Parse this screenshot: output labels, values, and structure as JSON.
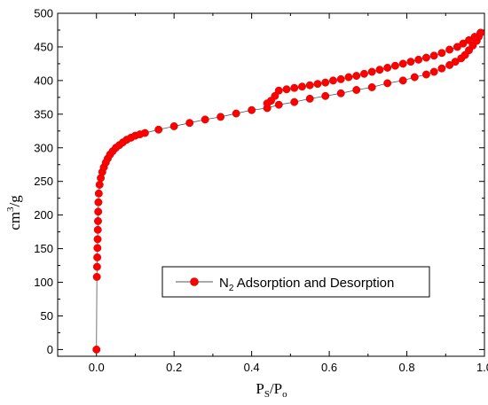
{
  "chart_data": {
    "type": "scatter",
    "ylabel": {
      "base": "cm",
      "sup": "3",
      "rest": "/g"
    },
    "xlabel": {
      "p": "P",
      "sub_s": "S",
      "slash": "/P",
      "sub_o": "o"
    },
    "xlim": [
      -0.1,
      1.0
    ],
    "ylim": [
      -10,
      500
    ],
    "xticks": [
      0.0,
      0.2,
      0.4,
      0.6,
      0.8,
      1.0
    ],
    "xtick_labels": [
      "0.0",
      "0.2",
      "0.4",
      "0.6",
      "0.8",
      "1.0"
    ],
    "yticks": [
      0,
      50,
      100,
      150,
      200,
      250,
      300,
      350,
      400,
      450,
      500
    ],
    "ytick_labels": [
      "0",
      "50",
      "100",
      "150",
      "200",
      "250",
      "300",
      "350",
      "400",
      "450",
      "500"
    ],
    "grid": false,
    "legend_position": "lower-right",
    "legend": {
      "label_n": "N",
      "label_sub": "2",
      "label_rest": " Adsorption and Desorption"
    },
    "colors": {
      "series": "#ff0000",
      "marker_edge": "#cc0000",
      "line": "#555555"
    },
    "series": [
      {
        "points": [
          [
            0.0,
            0
          ],
          [
            0.001,
            108
          ],
          [
            0.0015,
            123
          ],
          [
            0.002,
            137
          ],
          [
            0.0025,
            151
          ],
          [
            0.003,
            164
          ],
          [
            0.0035,
            178
          ],
          [
            0.004,
            191
          ],
          [
            0.0045,
            205
          ],
          [
            0.005,
            219
          ],
          [
            0.006,
            232
          ],
          [
            0.008,
            245
          ],
          [
            0.011,
            255
          ],
          [
            0.015,
            264
          ],
          [
            0.019,
            271
          ],
          [
            0.024,
            278
          ],
          [
            0.029,
            284
          ],
          [
            0.035,
            290
          ],
          [
            0.042,
            295
          ],
          [
            0.05,
            300
          ],
          [
            0.059,
            304
          ],
          [
            0.068,
            308
          ],
          [
            0.078,
            312
          ],
          [
            0.089,
            315
          ],
          [
            0.1,
            318
          ],
          [
            0.112,
            320
          ],
          [
            0.125,
            322
          ],
          [
            0.16,
            327
          ],
          [
            0.2,
            332
          ],
          [
            0.24,
            337
          ],
          [
            0.28,
            342
          ],
          [
            0.32,
            346
          ],
          [
            0.36,
            351
          ],
          [
            0.4,
            356
          ],
          [
            0.44,
            359
          ],
          [
            0.47,
            364
          ],
          [
            0.51,
            368
          ],
          [
            0.55,
            373
          ],
          [
            0.59,
            377
          ],
          [
            0.63,
            381
          ],
          [
            0.67,
            386
          ],
          [
            0.71,
            390
          ],
          [
            0.75,
            396
          ],
          [
            0.79,
            400
          ],
          [
            0.82,
            405
          ],
          [
            0.85,
            409
          ],
          [
            0.87,
            413
          ],
          [
            0.89,
            418
          ],
          [
            0.91,
            423
          ],
          [
            0.925,
            428
          ],
          [
            0.94,
            433
          ],
          [
            0.95,
            438
          ],
          [
            0.96,
            445
          ],
          [
            0.97,
            452
          ],
          [
            0.98,
            459
          ],
          [
            0.985,
            465
          ],
          [
            0.99,
            471
          ]
        ]
      },
      {
        "points": [
          [
            0.99,
            471
          ],
          [
            0.975,
            465
          ],
          [
            0.96,
            460
          ],
          [
            0.945,
            455
          ],
          [
            0.93,
            450
          ],
          [
            0.91,
            446
          ],
          [
            0.89,
            441
          ],
          [
            0.87,
            437
          ],
          [
            0.85,
            434
          ],
          [
            0.83,
            431
          ],
          [
            0.81,
            428
          ],
          [
            0.79,
            425
          ],
          [
            0.77,
            422
          ],
          [
            0.75,
            419
          ],
          [
            0.73,
            416
          ],
          [
            0.71,
            413
          ],
          [
            0.69,
            410
          ],
          [
            0.67,
            407
          ],
          [
            0.65,
            405
          ],
          [
            0.63,
            402
          ],
          [
            0.61,
            400
          ],
          [
            0.59,
            397
          ],
          [
            0.57,
            395
          ],
          [
            0.55,
            393
          ],
          [
            0.53,
            391
          ],
          [
            0.51,
            389
          ],
          [
            0.49,
            387
          ],
          [
            0.47,
            385
          ],
          [
            0.46,
            377
          ],
          [
            0.45,
            370
          ],
          [
            0.44,
            366
          ]
        ]
      }
    ]
  }
}
